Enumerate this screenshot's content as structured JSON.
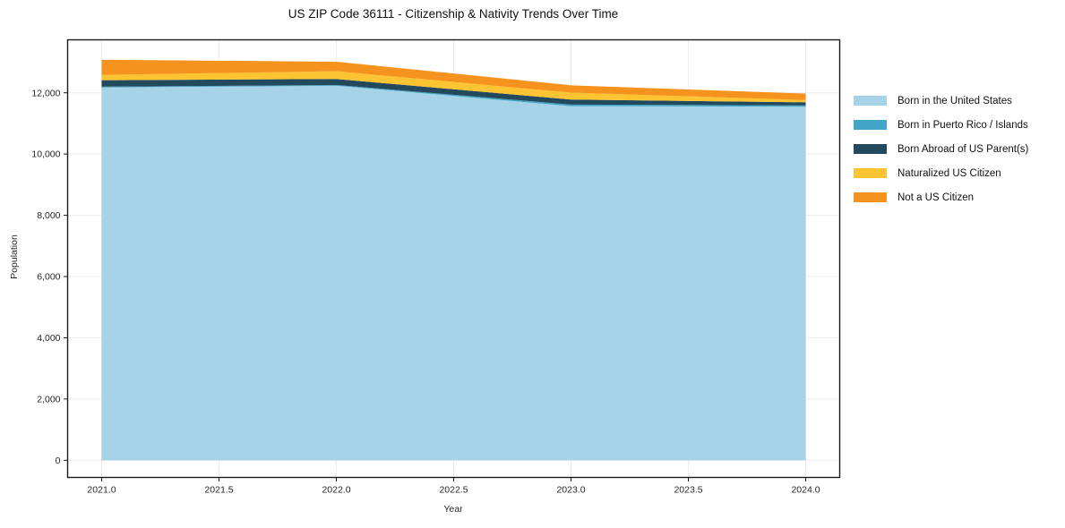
{
  "title": "US ZIP Code 36111 - Citizenship & Nativity Trends Over Time",
  "chart_data": {
    "type": "area",
    "stacked": true,
    "title": "US ZIP Code 36111 - Citizenship & Nativity Trends Over Time",
    "xlabel": "Year",
    "ylabel": "Population",
    "x": [
      2021,
      2022,
      2023,
      2024
    ],
    "xticks": [
      2021.0,
      2021.5,
      2022.0,
      2022.5,
      2023.0,
      2023.5,
      2024.0
    ],
    "xtick_labels": [
      "2021.0",
      "2021.5",
      "2022.0",
      "2022.5",
      "2023.0",
      "2023.5",
      "2024.0"
    ],
    "yticks": [
      0,
      2000,
      4000,
      6000,
      8000,
      10000,
      12000
    ],
    "ytick_labels": [
      "0",
      "2,000",
      "4,000",
      "6,000",
      "8,000",
      "10,000",
      "12,000"
    ],
    "xlim": [
      2020.855,
      2024.145
    ],
    "ylim": [
      -560,
      13730
    ],
    "grid": true,
    "legend_position": "right",
    "series": [
      {
        "name": "Born in the United States",
        "color": "#a7d3e8",
        "values": [
          12175,
          12230,
          11565,
          11545
        ]
      },
      {
        "name": "Born in Puerto Rico / Islands",
        "color": "#41a6c6",
        "values": [
          25,
          25,
          50,
          45
        ]
      },
      {
        "name": "Born Abroad of US Parent(s)",
        "color": "#234a5c",
        "values": [
          210,
          195,
          165,
          100
        ]
      },
      {
        "name": "Naturalized US Citizen",
        "color": "#fcc332",
        "values": [
          175,
          255,
          225,
          75
        ]
      },
      {
        "name": "Not a US Citizen",
        "color": "#f6921e",
        "values": [
          495,
          310,
          240,
          210
        ]
      }
    ],
    "colors": {
      "gridline": "#ececec",
      "spine": "#1a1a1a",
      "tick_text": "#262626"
    }
  }
}
